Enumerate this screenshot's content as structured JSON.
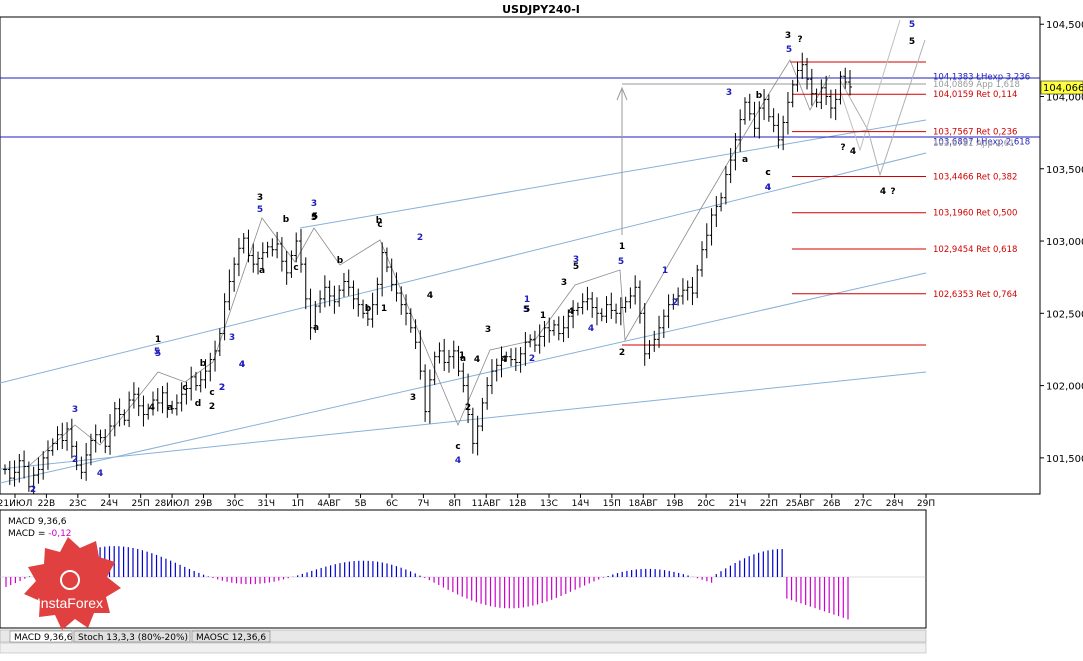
{
  "title": "USDJPY240-I",
  "current_price": "104,066",
  "colors": {
    "blue": "#1f1fbf",
    "red": "#d00000",
    "channel": "#88b0d8",
    "bar": "#000000",
    "hist_pos": "#0000cc",
    "hist_neg": "#cc00cc",
    "price_box": "#ffff40",
    "logo": "#e04040"
  },
  "chart_data": {
    "type": "ohlc",
    "symbol": "USDJPY240-I",
    "ylim": [
      101.25,
      104.55
    ],
    "yticks": [
      "104,500",
      "104,000",
      "103,500",
      "103,000",
      "102,500",
      "102,000",
      "101,500"
    ],
    "ytick_values": [
      104.5,
      104.0,
      103.5,
      103.0,
      102.5,
      102.0,
      101.5
    ],
    "xticks": [
      "21ИЮЛ",
      "22В",
      "23С",
      "24Ч",
      "25П",
      "28ИЮЛ",
      "29В",
      "30С",
      "31Ч",
      "1П",
      "4АВГ",
      "5В",
      "6С",
      "7Ч",
      "8П",
      "11АВГ",
      "12В",
      "13С",
      "14Ч",
      "15П",
      "18АВГ",
      "19В",
      "20С",
      "21Ч",
      "22П",
      "25АВГ",
      "26В",
      "27С",
      "28Ч",
      "29П"
    ],
    "levels": [
      {
        "label": "104,1383 ŁНехр 3,236",
        "value": 104.1383,
        "color": "blue"
      },
      {
        "label": "104,0869 Арр 1,618",
        "value": 104.0869,
        "color": "gray"
      },
      {
        "label": "104,0159 Ret 0,114",
        "value": 104.0159,
        "color": "red"
      },
      {
        "label": "103,7567 Ret 0,236",
        "value": 103.7567,
        "color": "red"
      },
      {
        "label": "103,6897 ŁНехр 2,618",
        "value": 103.6897,
        "color": "blue"
      },
      {
        "label": "103,6781 Арр 2,61",
        "value": 103.6781,
        "color": "gray"
      },
      {
        "label": "103,4466 Ret 0,382",
        "value": 103.4466,
        "color": "red"
      },
      {
        "label": "103,1960 Ret 0,500",
        "value": 103.196,
        "color": "red"
      },
      {
        "label": "102,9454 Ret 0,618",
        "value": 102.9454,
        "color": "red"
      },
      {
        "label": "102,6353 Ret 0,764",
        "value": 102.6353,
        "color": "red"
      }
    ],
    "ohlc_close": [
      101.42,
      101.36,
      101.4,
      101.48,
      101.44,
      101.3,
      101.38,
      101.42,
      101.5,
      101.55,
      101.6,
      101.66,
      101.62,
      101.7,
      101.58,
      101.45,
      101.4,
      101.52,
      101.62,
      101.66,
      101.64,
      101.58,
      101.72,
      101.84,
      101.8,
      101.76,
      101.9,
      101.94,
      101.86,
      101.8,
      101.84,
      101.9,
      101.88,
      101.95,
      101.86,
      101.84,
      101.88,
      101.94,
      101.98,
      102.06,
      102.0,
      102.04,
      102.1,
      102.18,
      102.24,
      102.36,
      102.58,
      102.72,
      102.84,
      102.95,
      103.02,
      102.9,
      102.84,
      102.88,
      102.92,
      102.96,
      102.94,
      102.98,
      102.86,
      102.78,
      102.9,
      103.0,
      102.84,
      102.6,
      102.4,
      102.55,
      102.6,
      102.68,
      102.62,
      102.58,
      102.66,
      102.72,
      102.68,
      102.6,
      102.56,
      102.5,
      102.46,
      102.56,
      102.7,
      102.92,
      102.82,
      102.7,
      102.64,
      102.56,
      102.5,
      102.4,
      102.3,
      102.1,
      101.82,
      102.04,
      102.2,
      102.24,
      102.16,
      102.2,
      102.24,
      102.1,
      102.0,
      101.8,
      101.6,
      101.72,
      101.88,
      102.0,
      102.1,
      102.14,
      102.2,
      102.2,
      102.18,
      102.16,
      102.22,
      102.3,
      102.32,
      102.28,
      102.34,
      102.4,
      102.38,
      102.42,
      102.36,
      102.4,
      102.48,
      102.52,
      102.54,
      102.58,
      102.6,
      102.54,
      102.5,
      102.48,
      102.56,
      102.52,
      102.5,
      102.54,
      102.58,
      102.62,
      102.68,
      102.5,
      102.22,
      102.28,
      102.32,
      102.4,
      102.48,
      102.56,
      102.6,
      102.62,
      102.66,
      102.68,
      102.64,
      102.8,
      102.94,
      103.04,
      103.18,
      103.24,
      103.3,
      103.46,
      103.56,
      103.7,
      103.84,
      103.96,
      103.88,
      103.78,
      103.92,
      103.98,
      103.86,
      103.8,
      103.7,
      103.82,
      103.96,
      104.08,
      104.18,
      104.22,
      104.12,
      104.02,
      103.96,
      104.06,
      104.0,
      103.92,
      103.98,
      104.14,
      104.1,
      104.066
    ]
  },
  "wave_labels": [
    {
      "t": "3",
      "c": "black"
    },
    {
      "t": "5",
      "c": "blue"
    },
    {
      "t": "3",
      "c": "blue"
    },
    {
      "t": "5",
      "c": "black"
    },
    {
      "t": "b",
      "c": "black"
    },
    {
      "t": "c",
      "c": "black"
    },
    {
      "t": "1",
      "c": "black"
    },
    {
      "t": "5",
      "c": "blue"
    },
    {
      "t": "3",
      "c": "blue"
    },
    {
      "t": "4",
      "c": "blue"
    },
    {
      "t": "2",
      "c": "blue"
    },
    {
      "t": "b",
      "c": "black"
    },
    {
      "t": "a",
      "c": "black"
    },
    {
      "t": "c",
      "c": "black"
    },
    {
      "t": "4",
      "c": "black"
    },
    {
      "t": "2",
      "c": "black"
    },
    {
      "t": "d",
      "c": "black"
    },
    {
      "t": "c",
      "c": "black"
    },
    {
      "t": "a",
      "c": "black"
    },
    {
      "t": "b",
      "c": "black"
    },
    {
      "t": "c",
      "c": "black"
    },
    {
      "t": "2",
      "c": "blue"
    },
    {
      "t": "3",
      "c": "black"
    },
    {
      "t": "4",
      "c": "black"
    },
    {
      "t": "a",
      "c": "black"
    },
    {
      "t": "b",
      "c": "black"
    },
    {
      "t": "1",
      "c": "black"
    },
    {
      "t": "4",
      "c": "black"
    },
    {
      "t": "a",
      "c": "black"
    },
    {
      "t": "b",
      "c": "black"
    },
    {
      "t": "2",
      "c": "black"
    },
    {
      "t": "1",
      "c": "black"
    },
    {
      "t": "c",
      "c": "black"
    },
    {
      "t": "3",
      "c": "black"
    },
    {
      "t": "5",
      "c": "black"
    },
    {
      "t": "4",
      "c": "blue"
    },
    {
      "t": "2",
      "c": "blue"
    },
    {
      "t": "3",
      "c": "blue"
    },
    {
      "t": "5",
      "c": "blue"
    },
    {
      "t": "1",
      "c": "black"
    },
    {
      "t": "5",
      "c": "blue"
    },
    {
      "t": "1",
      "c": "blue"
    },
    {
      "t": "2",
      "c": "blue"
    },
    {
      "t": "3",
      "c": "blue"
    },
    {
      "t": "4",
      "c": "blue"
    },
    {
      "t": "2",
      "c": "black"
    },
    {
      "t": "1",
      "c": "black"
    },
    {
      "t": "5",
      "c": "black"
    },
    {
      "t": "4",
      "c": "black"
    },
    {
      "t": "3",
      "c": "black"
    },
    {
      "t": "4",
      "c": "black"
    },
    {
      "t": "c",
      "c": "black"
    },
    {
      "t": "4",
      "c": "blue"
    },
    {
      "t": "5",
      "c": "black"
    },
    {
      "t": "2",
      "c": "blue"
    },
    {
      "t": "1",
      "c": "blue"
    },
    {
      "t": "2",
      "c": "blue"
    },
    {
      "t": "3",
      "c": "blue"
    },
    {
      "t": "4",
      "c": "blue"
    },
    {
      "t": "5",
      "c": "blue"
    },
    {
      "t": "3",
      "c": "black"
    },
    {
      "t": "5",
      "c": "blue"
    },
    {
      "t": "?",
      "c": "black"
    },
    {
      "t": "b",
      "c": "black"
    },
    {
      "t": "a",
      "c": "black"
    },
    {
      "t": "c",
      "c": "black"
    },
    {
      "t": "4",
      "c": "blue"
    },
    {
      "t": "?",
      "c": "black"
    },
    {
      "t": "4",
      "c": "black"
    },
    {
      "t": "4",
      "c": "black"
    },
    {
      "t": "?",
      "c": "black"
    },
    {
      "t": "5",
      "c": "blue"
    },
    {
      "t": "5",
      "c": "black"
    },
    {
      "t": "2",
      "c": "blue"
    },
    {
      "t": "4",
      "c": "blue"
    }
  ],
  "indicator": {
    "name": "MACD 9,36,6",
    "value_label": "MACD = ",
    "value": "-0,12",
    "tabs": [
      "MACD 9,36,6",
      "Stoch 13,3,3 (80%-20%)",
      "MAOSC 12,36,6"
    ]
  },
  "logo_text": "InstaForex"
}
